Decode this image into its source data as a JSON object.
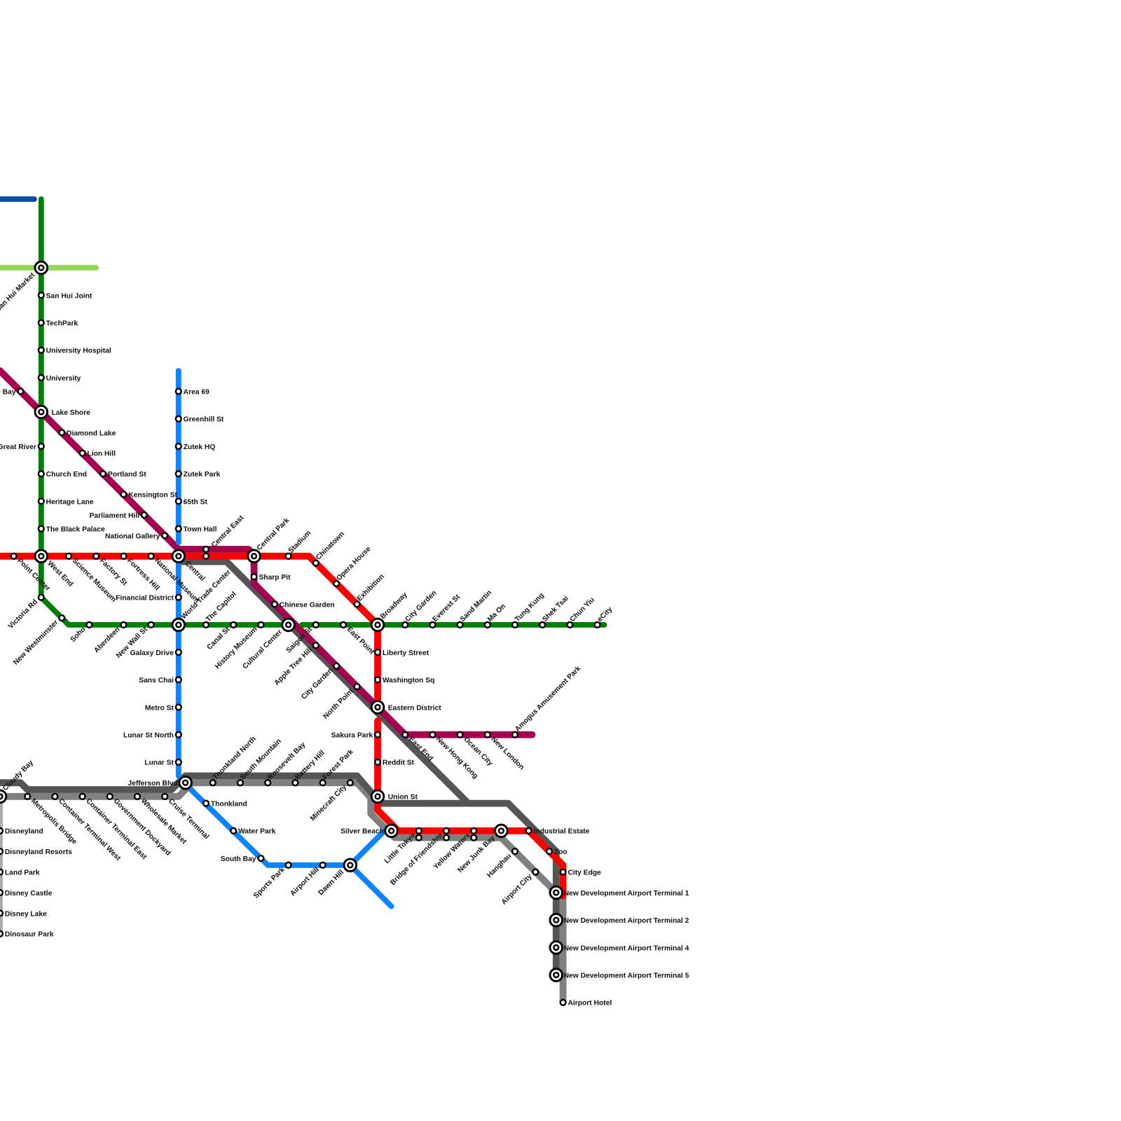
{
  "colors": {
    "red": "#ff0000",
    "green": "#008000",
    "light_green": "#95d65f",
    "dark_blue": "#0b4ea2",
    "blue": "#0a84ff",
    "magenta": "#a5004f",
    "dark_grey": "#555555",
    "grey": "#808080",
    "light_grey": "#aaaaaa"
  },
  "stations": [
    "San Hui Market",
    "San Hui Joint",
    "TechPark",
    "University Hospital",
    "University",
    "Lake Shore",
    "Great River",
    "Church End",
    "Heritage Lane",
    "The Black Palace",
    "West End",
    "Victoria Rd",
    "New Westminster",
    "Soho",
    "Aberdeen",
    "New Wall St",
    "World Trade Center",
    "The Capitol",
    "Canal St",
    "History Museum",
    "Cultural Center",
    "Saigon St",
    "East Point",
    "Broadway",
    "City Garden",
    "Everest St",
    "Sand Martin",
    "Ma On",
    "Tung Kung",
    "Shek Tsai",
    "Chun Yiu",
    "eCity",
    "e Bay",
    "Diamond Lake",
    "Lion Hill",
    "Portland St",
    "Kensington St",
    "Parliament Hill",
    "National Gallery",
    "Central",
    "Central East",
    "Central Park",
    "Sharp Pit",
    "Chinese Garden",
    "Apple Tree Hill",
    "City Garden",
    "North Point",
    "Eastern District",
    "East End",
    "New Hong Kong",
    "Ocean City",
    "New London",
    "Amogus Amusement Park",
    "Point Center",
    "Science Museum",
    "Factory St",
    "Fortress Hill",
    "National Museum",
    "Stadium",
    "Chinatown",
    "Opera House",
    "Exhibition",
    "Liberty Street",
    "Washington Sq",
    "Sakura Park",
    "Reddit St",
    "Union St",
    "Silver Beach",
    "Little Tokyo",
    "Bridge of Friendship",
    "Yellow Waters",
    "New Junk Bay",
    "Industrial Estate",
    "Zoo",
    "City Edge",
    "New Development Airport Terminal 1",
    "New Development Airport Terminal 2",
    "New Development Airport Terminal 4",
    "New Development Airport Terminal 5",
    "Airport Hotel",
    "Hanghau",
    "Airport City",
    "Area 69",
    "Greenhill St",
    "Zutek HQ",
    "Zutek Park",
    "65th St",
    "Town Hall",
    "Financial District",
    "Galaxy Drive",
    "Sans Chai",
    "Metro St",
    "Lunar St North",
    "Lunar St",
    "Jefferson Blvd",
    "Thonkland",
    "Water Park",
    "South Bay",
    "Sports Park",
    "Airport Hill",
    "Dawn Hill",
    "Cloudy Bay",
    "Metropolis Bridge",
    "Container Terminal West",
    "Container Terminal East",
    "Government Dockyard",
    "Wholesale Market",
    "Cruise Terminal",
    "Thonkland North",
    "South Mountain",
    "Roosevelt Bay",
    "Battery Hill",
    "Forest Park",
    "Minecraft City",
    "Disneyland",
    "Disneyland Resorts",
    "Land Park",
    "Disney Castle",
    "Disney Lake",
    "Dinosaur Park"
  ]
}
